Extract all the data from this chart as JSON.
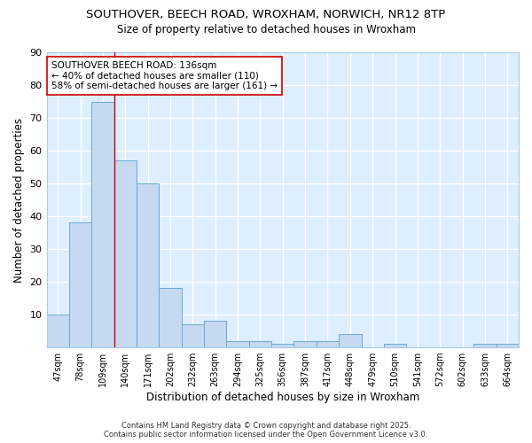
{
  "title_line1": "SOUTHOVER, BEECH ROAD, WROXHAM, NORWICH, NR12 8TP",
  "title_line2": "Size of property relative to detached houses in Wroxham",
  "xlabel": "Distribution of detached houses by size in Wroxham",
  "ylabel": "Number of detached properties",
  "bin_labels": [
    "47sqm",
    "78sqm",
    "109sqm",
    "140sqm",
    "171sqm",
    "202sqm",
    "232sqm",
    "263sqm",
    "294sqm",
    "325sqm",
    "356sqm",
    "387sqm",
    "417sqm",
    "448sqm",
    "479sqm",
    "510sqm",
    "541sqm",
    "572sqm",
    "602sqm",
    "633sqm",
    "664sqm"
  ],
  "bar_values": [
    10,
    38,
    75,
    57,
    50,
    18,
    7,
    8,
    2,
    2,
    1,
    2,
    2,
    4,
    0,
    1,
    0,
    0,
    0,
    1,
    1
  ],
  "bar_color": "#c5d9f0",
  "bar_edge_color": "#6aaad4",
  "background_color": "#ddeeff",
  "grid_color": "#ffffff",
  "annotation_text": "SOUTHOVER BEECH ROAD: 136sqm\n← 40% of detached houses are smaller (110)\n58% of semi-detached houses are larger (161) →",
  "annotation_box_color": "#ffffff",
  "annotation_box_edge": "#cc0000",
  "red_line_x": 3.0,
  "ylim": [
    0,
    90
  ],
  "yticks": [
    0,
    10,
    20,
    30,
    40,
    50,
    60,
    70,
    80,
    90
  ],
  "footer_line1": "Contains HM Land Registry data © Crown copyright and database right 2025.",
  "footer_line2": "Contains public sector information licensed under the Open Government Licence v3.0."
}
